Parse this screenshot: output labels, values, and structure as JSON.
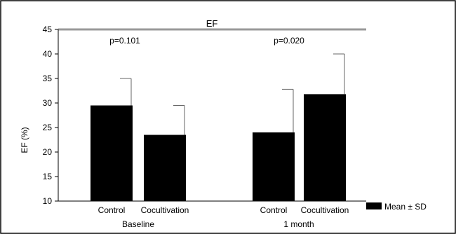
{
  "chart_data": {
    "type": "bar",
    "title": "EF",
    "ylabel": "EF (%)",
    "xlabel": "",
    "ylim": [
      10,
      45
    ],
    "yticks": [
      10,
      15,
      20,
      25,
      30,
      35,
      40,
      45
    ],
    "groups": [
      {
        "label": "Baseline",
        "pvalue": "p=0.101",
        "bars": [
          {
            "category": "Control",
            "mean": 29.5,
            "sd": 5.5
          },
          {
            "category": "Cocultivation",
            "mean": 23.5,
            "sd": 6.0
          }
        ]
      },
      {
        "label": "1 month",
        "pvalue": "p=0.020",
        "bars": [
          {
            "category": "Control",
            "mean": 24.0,
            "sd": 8.8
          },
          {
            "category": "Cocultivation",
            "mean": 31.8,
            "sd": 8.2
          }
        ]
      }
    ],
    "legend": {
      "label": "Mean ± SD",
      "color": "#000000",
      "position": "right"
    },
    "bar_color": "#000000",
    "grid": false
  }
}
